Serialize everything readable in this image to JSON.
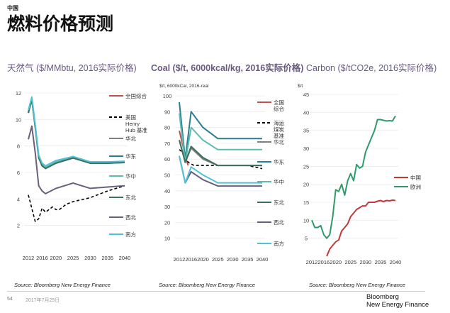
{
  "header": {
    "section_label": "中国",
    "title": "燃料价格预测"
  },
  "footer": {
    "page_number": "54",
    "date": "2017年7月25日",
    "brand_line1": "Bloomberg",
    "brand_line2": "New Energy Finance"
  },
  "panels": [
    {
      "title_en": "天然气 ($/MMbtu, 2016实际价格)",
      "source": "Source: Bloomberg New Energy Finance"
    },
    {
      "title_en": "Coal ($/t, 6000kcal/kg, 2016实际价格)",
      "unit_label": "$/t, 6000kCal, 2016-real",
      "source": "Source: Bloomberg New Energy Finance"
    },
    {
      "title_en": "Carbon ($/tCO2e, 2016实际价格)",
      "unit_label": "$/t",
      "source": "Source: Bloomberg New Energy Finance"
    }
  ],
  "colors": {
    "title_purple": "#6a5a82",
    "national": "#c0504d",
    "henry_hub": "#000000",
    "huabei": "#7f7f7f",
    "huadong": "#2a7f8f",
    "huazhong": "#5dbcb0",
    "dongbei": "#3f6f5f",
    "xibei": "#6b5f80",
    "nanfang": "#4fc3d6",
    "china_carbon": "#c0393b",
    "europe_carbon": "#2e9a6a"
  },
  "chart_data": [
    {
      "type": "line",
      "title": "天然气 ($/MMbtu, 2016实际价格)",
      "xlabel": "",
      "ylabel": "",
      "ylim": [
        0,
        12
      ],
      "yticks": [
        2,
        4,
        6,
        8,
        10,
        12
      ],
      "xticks": [
        "2012",
        "2016",
        "2020",
        "2025",
        "2030",
        "2035",
        "2040"
      ],
      "xlim": [
        2012,
        2040
      ],
      "grid": true,
      "legend": "right",
      "series": [
        {
          "name": "全国综合",
          "key": "national",
          "dashed": false,
          "x": [],
          "y": []
        },
        {
          "name": "美国Henry Hub 基准",
          "key": "henry_hub",
          "dashed": true,
          "x": [
            2012,
            2014,
            2015,
            2016,
            2017,
            2018,
            2019,
            2020,
            2021,
            2022,
            2023,
            2025,
            2030,
            2035,
            2040
          ],
          "y": [
            4.3,
            2.3,
            2.5,
            3.3,
            3.0,
            3.2,
            3.4,
            3.2,
            3.2,
            3.4,
            3.6,
            3.8,
            4.1,
            4.6,
            5.0
          ]
        },
        {
          "name": "华北",
          "key": "huabei",
          "dashed": false,
          "x": [
            2012,
            2013,
            2014,
            2015,
            2016,
            2017,
            2020,
            2025,
            2030,
            2035,
            2040
          ],
          "y": [
            10.5,
            11.5,
            9.5,
            7.2,
            6.5,
            6.3,
            6.7,
            7.1,
            6.7,
            6.7,
            6.8
          ]
        },
        {
          "name": "华东",
          "key": "huadong",
          "dashed": false,
          "x": [
            2012,
            2013,
            2014,
            2015,
            2016,
            2017,
            2020,
            2025,
            2030,
            2035,
            2040
          ],
          "y": [
            10.5,
            11.6,
            9.5,
            7.2,
            6.5,
            6.4,
            6.7,
            7.1,
            6.7,
            6.7,
            6.75
          ]
        },
        {
          "name": "华中",
          "key": "huazhong",
          "dashed": false,
          "x": [
            2012,
            2013,
            2014,
            2015,
            2016,
            2017,
            2020,
            2025,
            2030,
            2035,
            2040
          ],
          "y": [
            10.6,
            11.6,
            9.5,
            7.3,
            6.6,
            6.4,
            6.8,
            7.2,
            6.8,
            6.8,
            6.8
          ]
        },
        {
          "name": "东北",
          "key": "dongbei",
          "dashed": false,
          "x": [
            2012,
            2013,
            2014,
            2015,
            2016,
            2017,
            2020,
            2025,
            2030,
            2035,
            2040
          ],
          "y": [
            10.5,
            11.5,
            9.4,
            7.1,
            6.5,
            6.3,
            6.7,
            7.1,
            6.7,
            6.7,
            6.75
          ]
        },
        {
          "name": "西北",
          "key": "xibei",
          "dashed": false,
          "x": [
            2012,
            2013,
            2014,
            2015,
            2016,
            2017,
            2020,
            2025,
            2030,
            2035,
            2040
          ],
          "y": [
            8.5,
            9.5,
            7.5,
            5.0,
            4.6,
            4.4,
            4.8,
            5.2,
            4.8,
            4.9,
            5.0
          ]
        },
        {
          "name": "南方",
          "key": "nanfang",
          "dashed": false,
          "x": [
            2012,
            2013,
            2014,
            2015,
            2016,
            2017,
            2020,
            2025,
            2030,
            2035,
            2040
          ],
          "y": [
            10.7,
            11.7,
            9.6,
            7.3,
            6.7,
            6.5,
            6.9,
            7.2,
            6.8,
            6.8,
            6.85
          ]
        }
      ]
    },
    {
      "type": "line",
      "title": "Coal ($/t, 6000kcal/kg, 2016实际价格)",
      "xlabel": "",
      "ylabel": "$/t, 6000kCal, 2016-real",
      "ylim": [
        0,
        100
      ],
      "yticks": [
        10,
        20,
        30,
        40,
        50,
        60,
        70,
        80,
        90,
        100
      ],
      "xticks": [
        "2012",
        "2016",
        "2020",
        "2025",
        "2030",
        "2035",
        "2040"
      ],
      "xlim": [
        2012,
        2040
      ],
      "grid": true,
      "legend": "right",
      "series": [
        {
          "name": "全国综合",
          "key": "national",
          "dashed": false,
          "x": [
            2012,
            2013,
            2014,
            2015
          ],
          "y": [
            78,
            70,
            62,
            56
          ]
        },
        {
          "name": "海运煤炭基准",
          "key": "henry_hub",
          "dashed": true,
          "x": [
            2012,
            2014,
            2015,
            2016,
            2017,
            2018,
            2020,
            2025,
            2030,
            2035,
            2040
          ],
          "y": [
            66,
            63,
            58,
            57,
            56,
            56,
            56,
            56,
            56,
            56,
            54
          ]
        },
        {
          "name": "华北",
          "key": "huabei",
          "dashed": false,
          "x": [
            2012,
            2014,
            2016,
            2020,
            2025,
            2030,
            2035,
            2040
          ],
          "y": [
            72,
            58,
            67,
            60,
            56,
            56,
            56,
            56
          ]
        },
        {
          "name": "华东",
          "key": "huadong",
          "dashed": false,
          "x": [
            2012,
            2014,
            2016,
            2020,
            2025,
            2030,
            2035,
            2040
          ],
          "y": [
            96,
            60,
            90,
            80,
            73,
            73,
            73,
            73
          ]
        },
        {
          "name": "华中",
          "key": "huazhong",
          "dashed": false,
          "x": [
            2012,
            2014,
            2016,
            2020,
            2025,
            2030,
            2035,
            2040
          ],
          "y": [
            89,
            58,
            80,
            72,
            66,
            66,
            66,
            66
          ]
        },
        {
          "name": "东北",
          "key": "dongbei",
          "dashed": false,
          "x": [
            2012,
            2014,
            2016,
            2020,
            2025,
            2030,
            2035,
            2040
          ],
          "y": [
            72,
            58,
            68,
            61,
            56,
            56,
            56,
            56
          ]
        },
        {
          "name": "西北",
          "key": "xibei",
          "dashed": false,
          "x": [
            2012,
            2014,
            2016,
            2020,
            2025,
            2030,
            2035,
            2040
          ],
          "y": [
            62,
            45,
            52,
            47,
            43,
            43,
            43,
            43
          ]
        },
        {
          "name": "南方",
          "key": "nanfang",
          "dashed": false,
          "x": [
            2012,
            2014,
            2016,
            2020,
            2025,
            2030,
            2035,
            2040
          ],
          "y": [
            62,
            45,
            55,
            50,
            45,
            45,
            45,
            45
          ]
        }
      ]
    },
    {
      "type": "line",
      "title": "Carbon ($/tCO2e, 2016实际价格)",
      "xlabel": "",
      "ylabel": "$/t",
      "ylim": [
        0,
        45
      ],
      "yticks": [
        5,
        10,
        15,
        20,
        25,
        30,
        35,
        40,
        45
      ],
      "xticks": [
        "2012",
        "2016",
        "2020",
        "2025",
        "2030",
        "2035",
        "2040"
      ],
      "xlim": [
        2012,
        2040
      ],
      "grid": true,
      "legend": "right",
      "series": [
        {
          "name": "中国",
          "key": "china_carbon",
          "dashed": false,
          "x": [
            2017,
            2018,
            2019,
            2020,
            2021,
            2022,
            2023,
            2024,
            2025,
            2026,
            2027,
            2028,
            2029,
            2030,
            2031,
            2032,
            2033,
            2034,
            2035,
            2036,
            2037,
            2038,
            2039,
            2040
          ],
          "y": [
            0,
            2,
            3,
            4,
            4.5,
            7,
            8,
            9,
            11,
            12,
            13,
            13.5,
            14,
            14,
            15,
            15,
            15,
            15.3,
            15.5,
            15.2,
            15.5,
            15.4,
            15.6,
            15.5
          ]
        },
        {
          "name": "欧洲",
          "key": "europe_carbon",
          "dashed": false,
          "x": [
            2012,
            2013,
            2014,
            2015,
            2016,
            2017,
            2018,
            2019,
            2020,
            2021,
            2022,
            2023,
            2024,
            2025,
            2026,
            2027,
            2028,
            2029,
            2030,
            2031,
            2032,
            2033,
            2034,
            2035,
            2036,
            2037,
            2038,
            2039,
            2040
          ],
          "y": [
            10,
            8,
            8,
            8.5,
            6,
            5,
            6,
            11,
            18.5,
            18,
            20,
            17,
            21,
            23,
            21,
            25.5,
            24.5,
            25,
            29,
            31,
            33,
            35,
            38,
            38,
            37.8,
            37.6,
            37.7,
            37.6,
            39
          ]
        }
      ]
    }
  ]
}
